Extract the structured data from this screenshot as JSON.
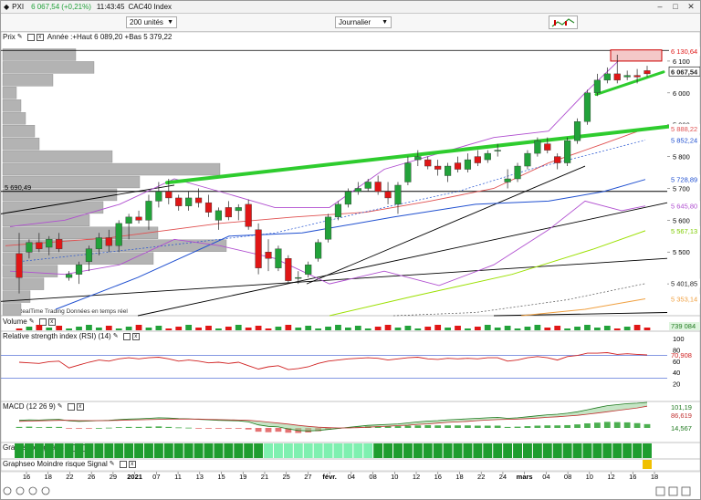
{
  "window": {
    "title_symbol": "PXI",
    "title_price": "6 067,54",
    "title_change": "(+0,21%)",
    "title_time": "11:43:45",
    "title_name": "CAC40 Index"
  },
  "toolbar": {
    "units_select": "200 unités",
    "period_select": "Journalier"
  },
  "panels": {
    "price_label": "Prix",
    "price_info": "Année :+Haut 6 089,20 +Bas 5 379,22",
    "volume_label": "Volume",
    "rsi_label": "Relative strength index (RSI) (14)",
    "macd_label": "MACD (12 26 9)",
    "signal_label": "Graphseo Signal",
    "risk_label": "Graphseo Moindre risque Signal",
    "footer": "© ProRealTime Trading  Données en temps réel",
    "level_label": "5 690,49"
  },
  "colors": {
    "up": "#22a23a",
    "down": "#e01616",
    "trend": "#2ecc2e",
    "bollinger": "#b04fd0",
    "ma_blue": "#2050d0",
    "ma_red": "#e05050",
    "ma_lime": "#9be000",
    "ma_orange": "#f0a040",
    "signal_dark": "#1f9d2f",
    "signal_light": "#7ff0b0"
  },
  "chart_data": {
    "type": "candlestick",
    "x_ticks": [
      "16",
      "18",
      "22",
      "26",
      "29",
      "2021",
      "07",
      "11",
      "13",
      "15",
      "19",
      "21",
      "25",
      "27",
      "févr.",
      "04",
      "08",
      "10",
      "12",
      "16",
      "18",
      "22",
      "24",
      "mars",
      "04",
      "08",
      "10",
      "12",
      "16",
      "18"
    ],
    "y_ticks": [
      6100,
      6000,
      5900,
      5800,
      5700,
      5600,
      5500,
      5400
    ],
    "ylim": [
      5300,
      6160
    ],
    "price_tags": [
      {
        "value": "6 130,64",
        "v": 6130.64,
        "color": "#e01616"
      },
      {
        "value": "6 067,54",
        "v": 6067.54,
        "color": "#222222",
        "bold": true
      },
      {
        "value": "5 888,22",
        "v": 5888.22,
        "color": "#e05050"
      },
      {
        "value": "5 852,24",
        "v": 5852.24,
        "color": "#2050d0"
      },
      {
        "value": "5 728,89",
        "v": 5728.89,
        "color": "#2050d0"
      },
      {
        "value": "5 645,80",
        "v": 5645.8,
        "color": "#b04fd0"
      },
      {
        "value": "5 567,13",
        "v": 5567.13,
        "color": "#7fcc00"
      },
      {
        "value": "5 401,85",
        "v": 5401.85,
        "color": "#222222"
      },
      {
        "value": "5 353,14",
        "v": 5353.14,
        "color": "#f0a040"
      }
    ],
    "level": 5690.49,
    "candles": [
      {
        "o": 5495,
        "h": 5560,
        "l": 5370,
        "c": 5420
      },
      {
        "o": 5500,
        "h": 5540,
        "l": 5480,
        "c": 5530
      },
      {
        "o": 5530,
        "h": 5560,
        "l": 5500,
        "c": 5510
      },
      {
        "o": 5515,
        "h": 5550,
        "l": 5490,
        "c": 5540
      },
      {
        "o": 5540,
        "h": 5560,
        "l": 5500,
        "c": 5510
      },
      {
        "o": 5420,
        "h": 5440,
        "l": 5410,
        "c": 5430
      },
      {
        "o": 5430,
        "h": 5470,
        "l": 5400,
        "c": 5460
      },
      {
        "o": 5470,
        "h": 5520,
        "l": 5440,
        "c": 5510
      },
      {
        "o": 5510,
        "h": 5560,
        "l": 5490,
        "c": 5545
      },
      {
        "o": 5545,
        "h": 5570,
        "l": 5500,
        "c": 5520
      },
      {
        "o": 5520,
        "h": 5600,
        "l": 5500,
        "c": 5590
      },
      {
        "o": 5590,
        "h": 5620,
        "l": 5540,
        "c": 5610
      },
      {
        "o": 5610,
        "h": 5630,
        "l": 5590,
        "c": 5600
      },
      {
        "o": 5600,
        "h": 5680,
        "l": 5570,
        "c": 5660
      },
      {
        "o": 5660,
        "h": 5720,
        "l": 5640,
        "c": 5690
      },
      {
        "o": 5690,
        "h": 5730,
        "l": 5650,
        "c": 5670
      },
      {
        "o": 5670,
        "h": 5680,
        "l": 5630,
        "c": 5645
      },
      {
        "o": 5645,
        "h": 5690,
        "l": 5630,
        "c": 5670
      },
      {
        "o": 5670,
        "h": 5700,
        "l": 5640,
        "c": 5655
      },
      {
        "o": 5655,
        "h": 5680,
        "l": 5610,
        "c": 5625
      },
      {
        "o": 5600,
        "h": 5640,
        "l": 5570,
        "c": 5630
      },
      {
        "o": 5640,
        "h": 5660,
        "l": 5600,
        "c": 5610
      },
      {
        "o": 5630,
        "h": 5650,
        "l": 5600,
        "c": 5640
      },
      {
        "o": 5650,
        "h": 5665,
        "l": 5570,
        "c": 5580
      },
      {
        "o": 5570,
        "h": 5590,
        "l": 5430,
        "c": 5450
      },
      {
        "o": 5500,
        "h": 5540,
        "l": 5440,
        "c": 5480
      },
      {
        "o": 5450,
        "h": 5520,
        "l": 5440,
        "c": 5510
      },
      {
        "o": 5480,
        "h": 5490,
        "l": 5400,
        "c": 5410
      },
      {
        "o": 5420,
        "h": 5440,
        "l": 5400,
        "c": 5420
      },
      {
        "o": 5430,
        "h": 5470,
        "l": 5420,
        "c": 5460
      },
      {
        "o": 5480,
        "h": 5540,
        "l": 5470,
        "c": 5530
      },
      {
        "o": 5540,
        "h": 5620,
        "l": 5530,
        "c": 5610
      },
      {
        "o": 5610,
        "h": 5660,
        "l": 5600,
        "c": 5650
      },
      {
        "o": 5650,
        "h": 5700,
        "l": 5640,
        "c": 5690
      },
      {
        "o": 5690,
        "h": 5720,
        "l": 5680,
        "c": 5700
      },
      {
        "o": 5700,
        "h": 5730,
        "l": 5690,
        "c": 5720
      },
      {
        "o": 5720,
        "h": 5740,
        "l": 5680,
        "c": 5690
      },
      {
        "o": 5690,
        "h": 5720,
        "l": 5650,
        "c": 5670
      },
      {
        "o": 5650,
        "h": 5720,
        "l": 5620,
        "c": 5710
      },
      {
        "o": 5720,
        "h": 5800,
        "l": 5710,
        "c": 5780
      },
      {
        "o": 5790,
        "h": 5820,
        "l": 5770,
        "c": 5800
      },
      {
        "o": 5790,
        "h": 5800,
        "l": 5760,
        "c": 5770
      },
      {
        "o": 5770,
        "h": 5790,
        "l": 5740,
        "c": 5760
      },
      {
        "o": 5740,
        "h": 5780,
        "l": 5720,
        "c": 5770
      },
      {
        "o": 5780,
        "h": 5800,
        "l": 5750,
        "c": 5760
      },
      {
        "o": 5760,
        "h": 5810,
        "l": 5750,
        "c": 5790
      },
      {
        "o": 5800,
        "h": 5820,
        "l": 5770,
        "c": 5780
      },
      {
        "o": 5790,
        "h": 5820,
        "l": 5780,
        "c": 5810
      },
      {
        "o": 5820,
        "h": 5840,
        "l": 5800,
        "c": 5820
      },
      {
        "o": 5720,
        "h": 5760,
        "l": 5700,
        "c": 5730
      },
      {
        "o": 5730,
        "h": 5780,
        "l": 5720,
        "c": 5770
      },
      {
        "o": 5770,
        "h": 5820,
        "l": 5760,
        "c": 5810
      },
      {
        "o": 5810,
        "h": 5860,
        "l": 5800,
        "c": 5850
      },
      {
        "o": 5840,
        "h": 5860,
        "l": 5810,
        "c": 5820
      },
      {
        "o": 5800,
        "h": 5810,
        "l": 5760,
        "c": 5780
      },
      {
        "o": 5780,
        "h": 5860,
        "l": 5770,
        "c": 5850
      },
      {
        "o": 5850,
        "h": 5920,
        "l": 5840,
        "c": 5910
      },
      {
        "o": 5910,
        "h": 6010,
        "l": 5900,
        "c": 6000
      },
      {
        "o": 6000,
        "h": 6060,
        "l": 5990,
        "c": 6040
      },
      {
        "o": 6040,
        "h": 6080,
        "l": 6030,
        "c": 6060
      },
      {
        "o": 6060,
        "h": 6120,
        "l": 6030,
        "c": 6040
      },
      {
        "o": 6050,
        "h": 6070,
        "l": 6040,
        "c": 6055
      },
      {
        "o": 6055,
        "h": 6075,
        "l": 6030,
        "c": 6050
      },
      {
        "o": 6070,
        "h": 6085,
        "l": 6050,
        "c": 6060
      }
    ],
    "volume_tag": "739 084",
    "rsi": {
      "ticks": [
        100,
        80,
        60,
        40,
        20
      ],
      "tag": "70,908",
      "values": [
        58,
        57,
        56,
        59,
        60,
        48,
        53,
        58,
        62,
        60,
        64,
        66,
        64,
        66,
        67,
        64,
        60,
        62,
        60,
        57,
        58,
        56,
        58,
        52,
        46,
        50,
        52,
        45,
        47,
        50,
        56,
        60,
        62,
        64,
        65,
        66,
        65,
        62,
        64,
        66,
        67,
        64,
        63,
        65,
        64,
        65,
        64,
        66,
        66,
        60,
        62,
        66,
        68,
        66,
        62,
        68,
        70,
        74,
        74,
        75,
        72,
        73,
        72,
        71
      ]
    },
    "macd": {
      "tags": [
        "101,19",
        "86,619",
        "14,567"
      ],
      "macd": [
        30,
        32,
        31,
        33,
        34,
        28,
        26,
        27,
        29,
        30,
        33,
        35,
        36,
        38,
        40,
        39,
        37,
        36,
        34,
        32,
        30,
        29,
        28,
        24,
        12,
        6,
        4,
        -4,
        -10,
        -12,
        -10,
        -6,
        -2,
        2,
        6,
        10,
        12,
        14,
        16,
        20,
        24,
        27,
        29,
        32,
        34,
        36,
        38,
        40,
        42,
        38,
        40,
        44,
        48,
        52,
        54,
        58,
        64,
        72,
        80,
        88,
        92,
        96,
        98,
        101
      ],
      "signal": [
        26,
        27,
        28,
        29,
        30,
        30,
        29,
        29,
        29,
        29,
        30,
        31,
        32,
        33,
        34,
        35,
        35,
        35,
        35,
        34,
        33,
        32,
        31,
        30,
        27,
        23,
        19,
        15,
        10,
        6,
        3,
        1,
        0,
        0,
        1,
        3,
        5,
        7,
        9,
        11,
        14,
        16,
        19,
        22,
        24,
        26,
        29,
        31,
        33,
        34,
        35,
        37,
        39,
        42,
        44,
        47,
        50,
        54,
        59,
        64,
        69,
        74,
        79,
        86
      ],
      "hist": [
        4,
        5,
        3,
        4,
        4,
        -2,
        -3,
        -2,
        0,
        1,
        3,
        4,
        4,
        5,
        6,
        4,
        2,
        1,
        -1,
        -2,
        -3,
        -3,
        -3,
        -6,
        -15,
        -17,
        -15,
        -19,
        -20,
        -18,
        -13,
        -7,
        -2,
        2,
        5,
        7,
        7,
        7,
        7,
        9,
        10,
        11,
        10,
        10,
        10,
        10,
        9,
        9,
        9,
        4,
        5,
        7,
        9,
        10,
        10,
        11,
        14,
        18,
        21,
        24,
        23,
        22,
        19,
        15
      ]
    },
    "signals": [
      0,
      0,
      0,
      0,
      0,
      0,
      0,
      0,
      0,
      0,
      0,
      0,
      0,
      0,
      0,
      0,
      0,
      0,
      0,
      0,
      0,
      0,
      0,
      0,
      0,
      1,
      1,
      1,
      1,
      1,
      1,
      1,
      1,
      1,
      1,
      1,
      0,
      0,
      0,
      0,
      0,
      0,
      0,
      0,
      0,
      0,
      0,
      0,
      0,
      0,
      0,
      0,
      0,
      0,
      0,
      0,
      0,
      0,
      0,
      0,
      0,
      0,
      0,
      0
    ],
    "risk_signals": [
      0,
      0,
      0,
      0,
      0,
      0,
      0,
      0,
      0,
      0,
      0,
      0,
      0,
      0,
      0,
      0,
      0,
      0,
      0,
      0,
      0,
      0,
      0,
      0,
      0,
      0,
      0,
      0,
      0,
      0,
      0,
      0,
      0,
      0,
      0,
      0,
      0,
      0,
      0,
      0,
      0,
      0,
      0,
      0,
      0,
      0,
      0,
      0,
      0,
      0,
      0,
      0,
      0,
      0,
      0,
      0,
      0,
      0,
      0,
      0,
      0,
      0,
      0,
      1
    ]
  }
}
